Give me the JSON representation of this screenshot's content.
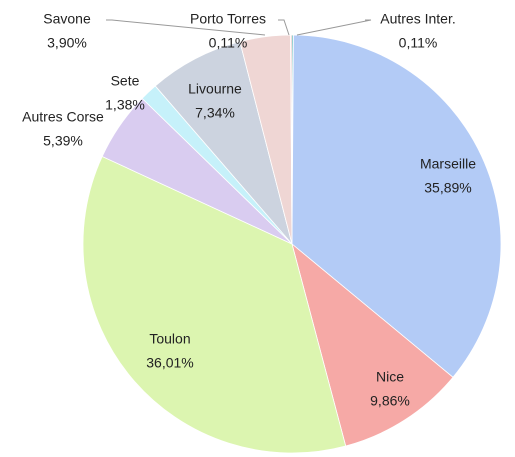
{
  "chart_data": {
    "type": "pie",
    "categories": [
      "Autres Inter.",
      "Marseille",
      "Nice",
      "Toulon",
      "Autres Corse",
      "Sete",
      "Livourne",
      "Savone",
      "Porto Torres"
    ],
    "values": [
      0.11,
      35.89,
      9.86,
      36.01,
      5.39,
      1.38,
      7.34,
      3.9,
      0.11
    ],
    "value_labels": [
      "0,11%",
      "35,89%",
      "9,86%",
      "36,01%",
      "5,39%",
      "1,38%",
      "7,34%",
      "3,90%",
      "0,11%"
    ],
    "colors": [
      "#2fa7a7",
      "#b3cbf6",
      "#f6a9a6",
      "#dcf5b0",
      "#d9ccf0",
      "#c6f1fa",
      "#ccd3df",
      "#efd6d4",
      "#e9c4c4"
    ]
  }
}
